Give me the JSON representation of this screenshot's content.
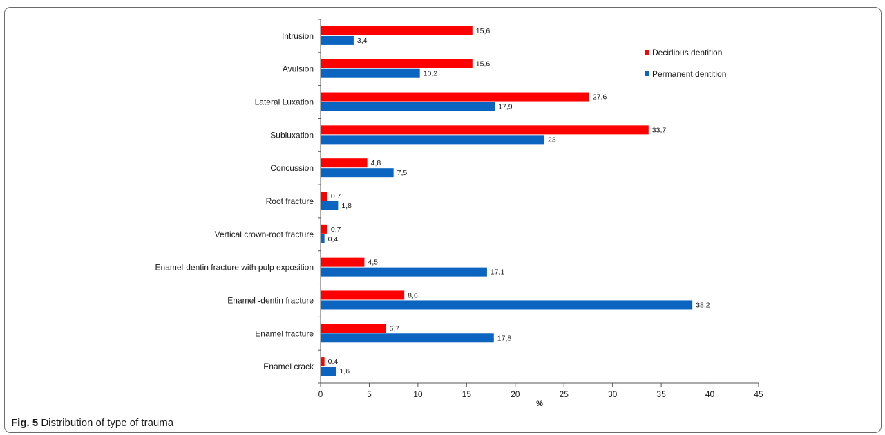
{
  "caption": {
    "label": "Fig. 5",
    "text": "Distribution of type of trauma"
  },
  "chart_data": {
    "type": "bar",
    "orientation": "horizontal",
    "categories": [
      "Intrusion",
      "Avulsion",
      "Lateral Luxation",
      "Subluxation",
      "Concussion",
      "Root fracture",
      "Vertical crown-root fracture",
      "Enamel-dentin fracture with pulp exposition",
      "Enamel -dentin fracture",
      "Enamel fracture",
      "Enamel crack"
    ],
    "series": [
      {
        "name": "Decidious dentition",
        "color": "#ff0000",
        "values": [
          15.6,
          15.6,
          27.6,
          33.7,
          4.8,
          0.7,
          0.7,
          4.5,
          8.6,
          6.7,
          0.4
        ],
        "labels": [
          "15,6",
          "15,6",
          "27,6",
          "33,7",
          "4,8",
          "0,7",
          "0,7",
          "4,5",
          "8,6",
          "6,7",
          "0,4"
        ]
      },
      {
        "name": "Permanent dentition",
        "color": "#0a64c0",
        "values": [
          3.4,
          10.2,
          17.9,
          23,
          7.5,
          1.8,
          0.4,
          17.1,
          38.2,
          17.8,
          1.6
        ],
        "labels": [
          "3,4",
          "10,2",
          "17,9",
          "23",
          "7,5",
          "1,8",
          "0,4",
          "17,1",
          "38,2",
          "17,8",
          "1,6"
        ]
      }
    ],
    "xlabel": "%",
    "xlim": [
      0,
      45
    ],
    "xticks": [
      0,
      5,
      10,
      15,
      20,
      25,
      30,
      35,
      40,
      45
    ],
    "legend_position": "top-right",
    "grid": false
  }
}
